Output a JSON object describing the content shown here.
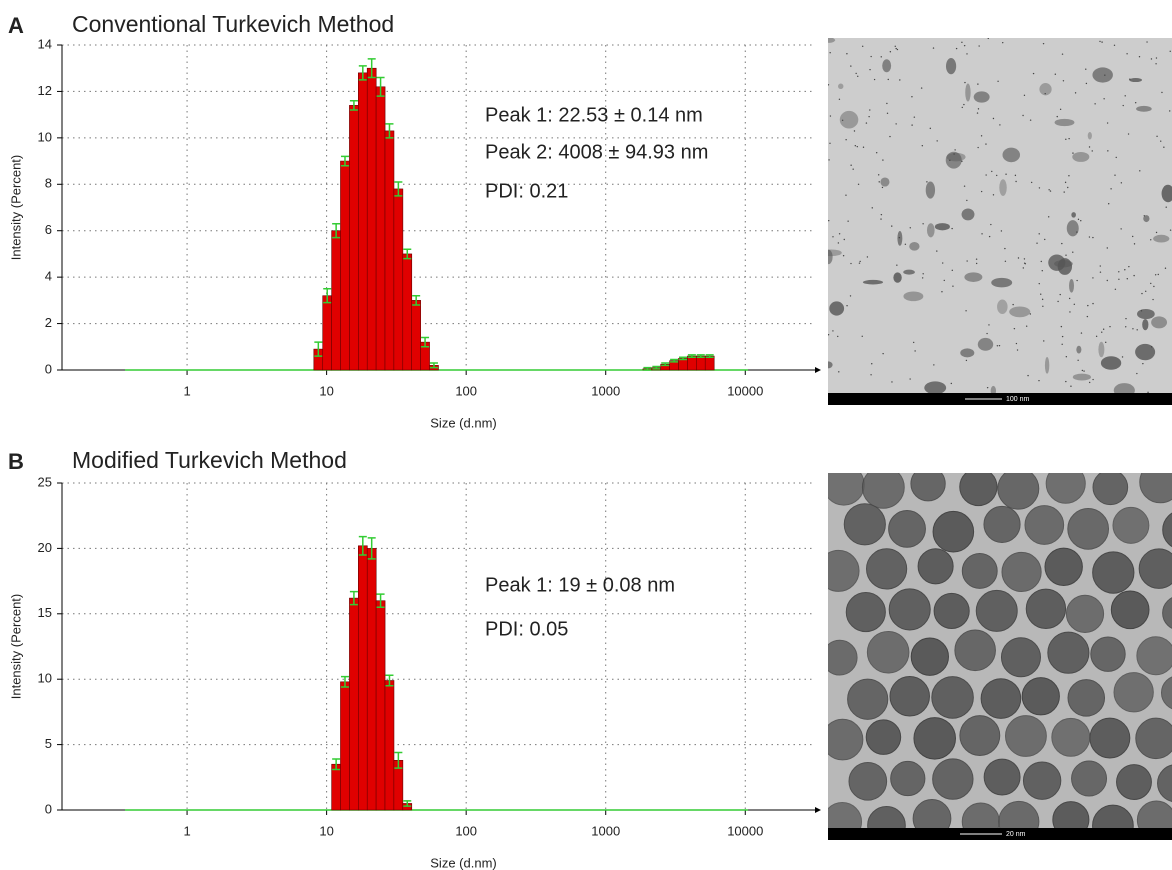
{
  "chart_data": [
    {
      "type": "bar",
      "panel": "A",
      "title": "Conventional Turkevich Method",
      "xlabel": "Size (d.nm)",
      "ylabel": "Intensity (Percent)",
      "log_x": true,
      "grid": true,
      "color": "#e00000",
      "error_color": "#33cc33",
      "x": [
        8.721,
        10.1,
        11.7,
        13.54,
        15.69,
        18.17,
        21.04,
        24.36,
        28.21,
        32.67,
        37.84,
        43.82,
        50.75,
        58.77,
        1990,
        2305,
        2669,
        3091,
        3580,
        4145,
        4801,
        5560
      ],
      "values": [
        0.9,
        3.2,
        6.0,
        9.0,
        11.4,
        12.8,
        13.0,
        12.2,
        10.3,
        7.8,
        5.0,
        3.0,
        1.2,
        0.2,
        0.05,
        0.1,
        0.25,
        0.4,
        0.5,
        0.6,
        0.6,
        0.6
      ],
      "errors": [
        0.3,
        0.3,
        0.3,
        0.2,
        0.2,
        0.3,
        0.4,
        0.4,
        0.3,
        0.3,
        0.2,
        0.2,
        0.2,
        0.1,
        0.05,
        0.05,
        0.05,
        0.05,
        0.05,
        0.05,
        0.05,
        0.05
      ],
      "xlim": [
        0.127,
        31600
      ],
      "xticks": [
        1,
        10,
        100,
        1000,
        10000
      ],
      "ylim": [
        0,
        14
      ],
      "yticks": [
        0,
        2,
        4,
        6,
        8,
        10,
        12,
        14
      ],
      "annotations": [
        "Peak 1: 22.53 ± 0.14 nm",
        "Peak 2: 4008 ± 94.93 nm",
        "PDI: 0.21"
      ],
      "image_scale_bar": "100 nm"
    },
    {
      "type": "bar",
      "panel": "B",
      "title": "Modified Turkevich Method",
      "xlabel": "Size (d.nm)",
      "ylabel": "Intensity (Percent)",
      "log_x": true,
      "grid": true,
      "color": "#e00000",
      "error_color": "#33cc33",
      "x": [
        11.7,
        13.54,
        15.69,
        18.17,
        21.04,
        24.36,
        28.21,
        32.67,
        37.84
      ],
      "values": [
        3.5,
        9.8,
        16.2,
        20.2,
        20.0,
        16.0,
        9.9,
        3.8,
        0.5
      ],
      "errors": [
        0.4,
        0.4,
        0.5,
        0.7,
        0.8,
        0.5,
        0.4,
        0.6,
        0.2
      ],
      "xlim": [
        0.127,
        31600
      ],
      "xticks": [
        1,
        10,
        100,
        1000,
        10000
      ],
      "ylim": [
        0,
        25
      ],
      "yticks": [
        0,
        5,
        10,
        15,
        20,
        25
      ],
      "annotations": [
        "Peak 1: 19 ± 0.08 nm",
        "PDI: 0.05"
      ],
      "image_scale_bar": "20 nm"
    }
  ]
}
